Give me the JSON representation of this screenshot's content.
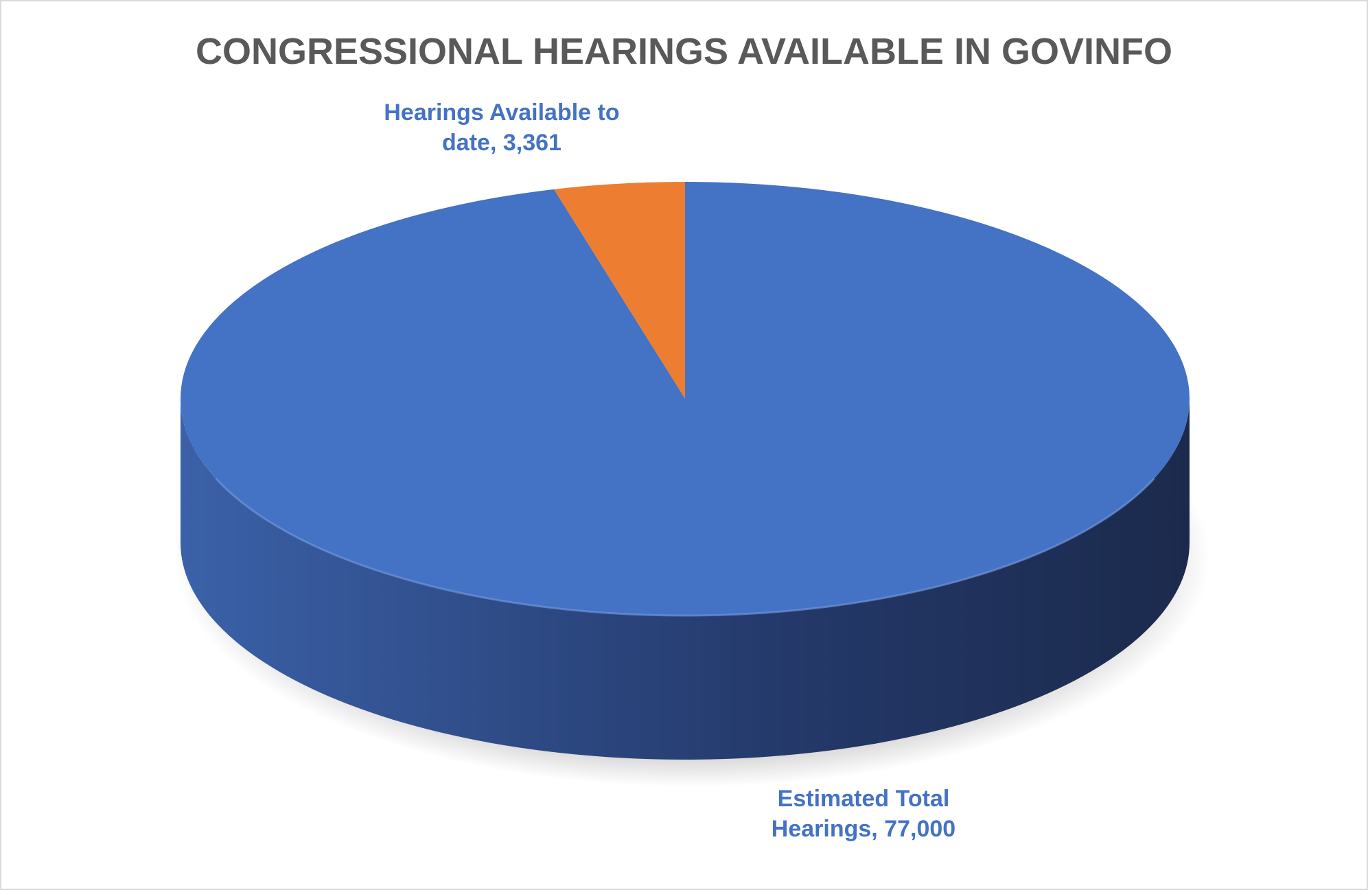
{
  "chart_data": {
    "type": "pie3d",
    "title": "CONGRESSIONAL HEARINGS AVAILABLE IN GOVINFO",
    "categories": [
      "Estimated Total Hearings",
      "Hearings Available to date"
    ],
    "values": [
      77000,
      3361
    ],
    "value_labels": [
      "77,000",
      "3,361"
    ],
    "colors": [
      "#4472c4",
      "#ed7d31"
    ]
  }
}
